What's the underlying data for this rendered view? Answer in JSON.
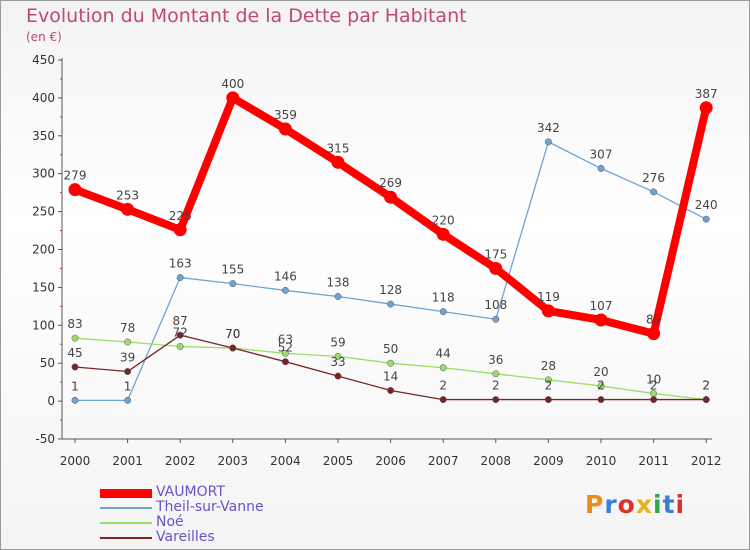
{
  "title": "Evolution du Montant de la Dette par Habitant",
  "subtitle": "(en €)",
  "logo": {
    "text": "Proxiti",
    "colors": [
      "#f08a1a",
      "#3a7ed8",
      "#e0302a",
      "#e8b21a",
      "#2fa84a",
      "#3a7ed8",
      "#e0302a"
    ]
  },
  "chart_data": {
    "type": "line",
    "x": [
      "2000",
      "2001",
      "2002",
      "2003",
      "2004",
      "2005",
      "2006",
      "2007",
      "2008",
      "2009",
      "2010",
      "2011",
      "2012"
    ],
    "ylim": [
      -50,
      450
    ],
    "yticks": [
      -50,
      0,
      50,
      100,
      150,
      200,
      250,
      300,
      350,
      400,
      450
    ],
    "grid": false,
    "legend_position": "bottom-left",
    "series": [
      {
        "name": "VAUMORT",
        "color": "#ff0000",
        "values": [
          279,
          253,
          226,
          400,
          359,
          315,
          269,
          220,
          175,
          119,
          107,
          89,
          387
        ],
        "labels": [
          "279",
          "253",
          "226",
          "400",
          "359",
          "315",
          "269",
          "220",
          "175",
          "119",
          "107",
          "89",
          "387"
        ]
      },
      {
        "name": "Theil-sur-Vanne",
        "color": "#6fa3d4",
        "values": [
          1,
          1,
          163,
          155,
          146,
          138,
          128,
          118,
          108,
          342,
          307,
          276,
          240
        ],
        "labels": [
          "1",
          "1",
          "163",
          "155",
          "146",
          "138",
          "128",
          "118",
          "108",
          "342",
          "307",
          "276",
          "240"
        ]
      },
      {
        "name": "Noé",
        "color": "#99dd66",
        "values": [
          83,
          78,
          72,
          70,
          63,
          59,
          50,
          44,
          36,
          28,
          20,
          10,
          2
        ],
        "labels": [
          "83",
          "78",
          "72",
          "70",
          "63",
          "59",
          "50",
          "44",
          "36",
          "28",
          "20",
          "10",
          "2"
        ]
      },
      {
        "name": "Vareilles",
        "color": "#7a2525",
        "values": [
          45,
          39,
          87,
          70,
          52,
          33,
          14,
          2,
          2,
          2,
          2,
          2,
          2
        ],
        "labels": [
          "45",
          "39",
          "87",
          "70",
          "52",
          "33",
          "14",
          "2",
          "2",
          "2",
          "2",
          "2",
          "2"
        ]
      }
    ]
  }
}
